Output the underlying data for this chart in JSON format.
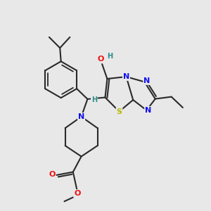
{
  "bg_color": "#e8e8e8",
  "bond_color": "#2a2a2a",
  "bond_width": 1.5,
  "atom_colors": {
    "N": "#1010ee",
    "O": "#ee1010",
    "S": "#b8b800",
    "H": "#2a8a8a"
  },
  "fs": 8.0,
  "hfs": 7.0
}
